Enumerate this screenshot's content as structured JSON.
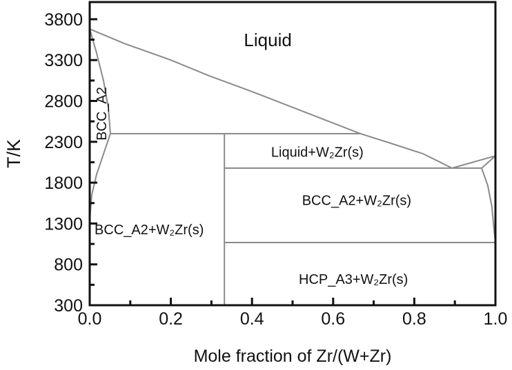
{
  "chart_data": {
    "type": "line",
    "title": "",
    "xlabel": "Mole fraction of Zr/(W+Zr)",
    "ylabel": "T/K",
    "xlim": [
      0.0,
      1.0
    ],
    "ylim": [
      300,
      4010
    ],
    "xticks": [
      "0.0",
      "0.2",
      "0.4",
      "0.6",
      "0.8",
      "1.0"
    ],
    "xtick_values": [
      0.0,
      0.2,
      0.4,
      0.6,
      0.8,
      1.0
    ],
    "yticks": [
      "3800",
      "3300",
      "2800",
      "2300",
      "1800",
      "1300",
      "800",
      "300"
    ],
    "ytick_values": [
      3800,
      3300,
      2800,
      2300,
      1800,
      1300,
      800,
      300
    ],
    "grid": false,
    "line_color": "#8a8a8a",
    "axis_color": "#111111",
    "boundaries": [
      {
        "points": [
          [
            0,
            3681
          ],
          [
            0.085,
            3504
          ],
          [
            0.199,
            3302
          ],
          [
            0.294,
            3108
          ],
          [
            0.396,
            2922
          ],
          [
            0.51,
            2703
          ],
          [
            0.667,
            2400
          ],
          [
            0.737,
            2290
          ],
          [
            0.821,
            2155
          ],
          [
            0.893,
            1978
          ]
        ]
      },
      {
        "points": [
          [
            0.893,
            1978
          ],
          [
            1.0,
            2128
          ]
        ]
      },
      {
        "points": [
          [
            0.966,
            1978
          ],
          [
            1.0,
            2128
          ]
        ]
      },
      {
        "points": [
          [
            0.966,
            1978
          ],
          [
            0.981,
            1767
          ],
          [
            0.991,
            1514
          ],
          [
            0.997,
            1202
          ],
          [
            1.0,
            1067
          ]
        ]
      },
      {
        "points": [
          [
            0,
            3681
          ],
          [
            0.017,
            3386
          ],
          [
            0.034,
            3049
          ],
          [
            0.046,
            2711
          ],
          [
            0.051,
            2400
          ]
        ]
      },
      {
        "points": [
          [
            0.051,
            2400
          ],
          [
            0.017,
            1902
          ],
          [
            0.005,
            1649
          ],
          [
            0,
            1337
          ]
        ]
      },
      {
        "points": [
          [
            0.051,
            2400
          ],
          [
            0.667,
            2400
          ]
        ]
      },
      {
        "points": [
          [
            0.332,
            1978
          ],
          [
            0.966,
            1978
          ]
        ]
      },
      {
        "points": [
          [
            0.332,
            1067
          ],
          [
            1.0,
            1067
          ]
        ]
      },
      {
        "points": [
          [
            0.332,
            300
          ],
          [
            0.332,
            2400
          ]
        ]
      }
    ],
    "annotations": [
      {
        "text": "Liquid",
        "x": 0.439,
        "y": 3529,
        "anchor": "middle",
        "rotate": 0,
        "size": "large"
      },
      {
        "text": "BCC_A2",
        "x": 0.032,
        "y": 2644,
        "anchor": "middle",
        "rotate": -90,
        "size": "medium"
      },
      {
        "text": "Liquid+W₂Zr(s)",
        "x": 0.561,
        "y": 2163,
        "anchor": "middle",
        "rotate": 0,
        "size": "medium"
      },
      {
        "text": "BCC_A2+W₂Zr(s)",
        "x": 0.658,
        "y": 1573,
        "anchor": "middle",
        "rotate": 0,
        "size": "medium"
      },
      {
        "text": "BCC_A2+W₂Zr(s)",
        "x": 0.012,
        "y": 1211,
        "anchor": "start",
        "rotate": 0,
        "size": "medium"
      },
      {
        "text": "HCP_A3+W₂Zr(s)",
        "x": 0.65,
        "y": 604,
        "anchor": "middle",
        "rotate": 0,
        "size": "medium"
      }
    ]
  }
}
